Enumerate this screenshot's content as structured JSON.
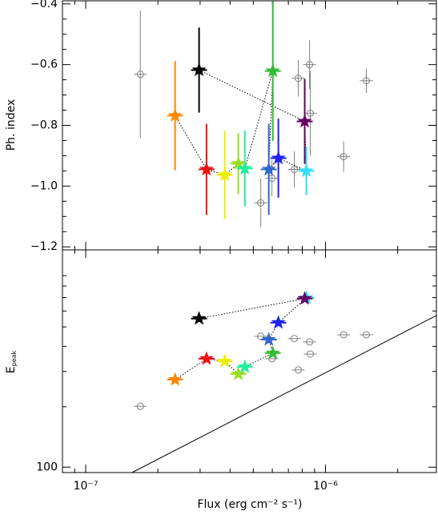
{
  "chart_data": [
    {
      "type": "scatter",
      "ylabel": "Ph. index",
      "xlim": [
        8e-08,
        2.9e-06
      ],
      "xlog": true,
      "ylim": [
        -1.21,
        -0.39
      ],
      "yticks": [
        {
          "value": -1.2,
          "label": "−1.2"
        },
        {
          "value": -1.0,
          "label": "−1.0"
        },
        {
          "value": -0.8,
          "label": "−0.8"
        },
        {
          "value": -0.6,
          "label": "−0.6"
        },
        {
          "value": -0.4,
          "label": "−0.4"
        }
      ],
      "series": [
        {
          "marker": "circle",
          "color": "#808080",
          "x": [
            1.69e-07,
            7.7e-07,
            8.58e-07,
            8.64e-07,
            1.48e-06,
            1.19e-06,
            5.37e-07,
            5.98e-07,
            7.41e-07
          ],
          "values": [
            -0.632,
            -0.645,
            -0.6,
            -0.76,
            -0.653,
            -0.903,
            -1.055,
            -0.974,
            -0.945
          ],
          "errors": [
            0.21,
            0.06,
            0.08,
            0.14,
            0.04,
            0.05,
            0.08,
            0.06,
            0.06
          ]
        },
        {
          "marker": "star",
          "connect": true,
          "colors": [
            "#000000",
            "#660066",
            "#33ddff",
            "#2222ee",
            "#3366cc",
            "#33bb33",
            "#22ee99",
            "#99dd22",
            "#eeee00",
            "#ee1111",
            "#ff8800"
          ],
          "x": [
            2.97e-07,
            8.19e-07,
            8.32e-07,
            6.36e-07,
            5.8e-07,
            6.03e-07,
            4.61e-07,
            4.33e-07,
            3.8e-07,
            3.19e-07,
            2.36e-07
          ],
          "values": [
            -0.618,
            -0.787,
            -0.95,
            -0.908,
            -0.945,
            -0.621,
            -0.942,
            -0.926,
            -0.963,
            -0.945,
            -0.768
          ],
          "errors": [
            0.14,
            0.14,
            0.08,
            0.13,
            0.15,
            0.23,
            0.125,
            0.1,
            0.145,
            0.15,
            0.18
          ]
        }
      ]
    },
    {
      "type": "scatter",
      "ylabel": "E",
      "ylabel_subscript": "peak",
      "xlabel": "Flux (erg cm⁻² s⁻¹)",
      "xlim": [
        8e-08,
        2.9e-06
      ],
      "xlog": true,
      "xticks": [
        {
          "value": 1e-07,
          "label": "10⁻⁷"
        },
        {
          "value": 1e-06,
          "label": "10⁻⁶"
        }
      ],
      "ylim": [
        94,
        1210
      ],
      "ylog": true,
      "yticks": [
        100
      ],
      "series": [
        {
          "marker": "line",
          "color": "#000000",
          "x": [
            1.56e-07,
            2.9e-06
          ],
          "values": [
            94,
            570
          ]
        },
        {
          "marker": "circle",
          "color": "#808080",
          "x": [
            1.69e-07,
            5.37e-07,
            5.98e-07,
            7.41e-07,
            7.7e-07,
            8.58e-07,
            8.64e-07,
            1.19e-06,
            1.48e-06
          ],
          "values": [
            201,
            449,
            347,
            437,
            305,
            421,
            366,
            457,
            457
          ]
        },
        {
          "marker": "star",
          "connect": true,
          "colors": [
            "#000000",
            "#660066",
            "#33ddff",
            "#2222ee",
            "#3366cc",
            "#33bb33",
            "#22ee99",
            "#99dd22",
            "#eeee00",
            "#ee1111",
            "#ff8800"
          ],
          "x": [
            2.97e-07,
            8.19e-07,
            8.32e-07,
            6.36e-07,
            5.8e-07,
            6.03e-07,
            4.61e-07,
            4.33e-07,
            3.8e-07,
            3.19e-07,
            2.36e-07
          ],
          "values": [
            550,
            692,
            698,
            525,
            432,
            370,
            316,
            291,
            337,
            347,
            273
          ]
        }
      ]
    }
  ]
}
